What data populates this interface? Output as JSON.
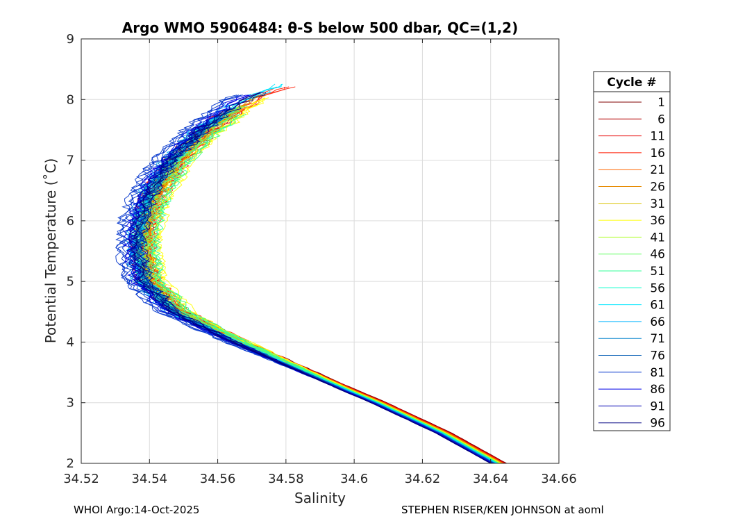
{
  "chart_data": {
    "type": "line",
    "title": "Argo WMO 5906484: θ-S below 500 dbar,  QC=(1,2)",
    "xlabel": "Salinity",
    "ylabel": "Potential Temperature (˚C)",
    "xlim": [
      34.52,
      34.66
    ],
    "ylim": [
      2,
      9
    ],
    "xticks": [
      34.52,
      34.54,
      34.56,
      34.58,
      34.6,
      34.62,
      34.64,
      34.66
    ],
    "xtick_labels": [
      "34.52",
      "34.54",
      "34.56",
      "34.58",
      "34.6",
      "34.62",
      "34.64",
      "34.66"
    ],
    "yticks": [
      2,
      3,
      4,
      5,
      6,
      7,
      8,
      9
    ],
    "ytick_labels": [
      "2",
      "3",
      "4",
      "5",
      "6",
      "7",
      "8",
      "9"
    ],
    "grid": true,
    "legend_title": "Cycle #",
    "legend_position": "outside-right",
    "series": [
      {
        "name": "1",
        "color": "#800000"
      },
      {
        "name": "6",
        "color": "#b30000"
      },
      {
        "name": "11",
        "color": "#e60000"
      },
      {
        "name": "16",
        "color": "#ff1a00"
      },
      {
        "name": "21",
        "color": "#ff6600"
      },
      {
        "name": "26",
        "color": "#e68a00"
      },
      {
        "name": "31",
        "color": "#d9c200"
      },
      {
        "name": "36",
        "color": "#ffff00"
      },
      {
        "name": "41",
        "color": "#b3ff33"
      },
      {
        "name": "46",
        "color": "#66ff66"
      },
      {
        "name": "51",
        "color": "#33ff99"
      },
      {
        "name": "56",
        "color": "#00ffcc"
      },
      {
        "name": "61",
        "color": "#00e6ff"
      },
      {
        "name": "66",
        "color": "#00b3ff"
      },
      {
        "name": "71",
        "color": "#0080cc"
      },
      {
        "name": "76",
        "color": "#0059b3"
      },
      {
        "name": "81",
        "color": "#0033cc"
      },
      {
        "name": "86",
        "color": "#0000e6"
      },
      {
        "name": "91",
        "color": "#0000b3"
      },
      {
        "name": "96",
        "color": "#000080"
      }
    ],
    "representative_profile": {
      "theta": [
        2.0,
        2.5,
        3.0,
        3.5,
        4.0,
        4.5,
        5.0,
        5.5,
        6.0,
        6.5,
        7.0,
        7.5,
        8.0,
        8.3
      ],
      "salinity": [
        34.642,
        34.626,
        34.607,
        34.586,
        34.565,
        34.546,
        34.537,
        34.535,
        34.536,
        34.539,
        34.545,
        34.554,
        34.566,
        34.579
      ]
    }
  },
  "footer": {
    "left": "WHOI Argo:14-Oct-2025",
    "right": "STEPHEN RISER/KEN JOHNSON at aoml"
  }
}
